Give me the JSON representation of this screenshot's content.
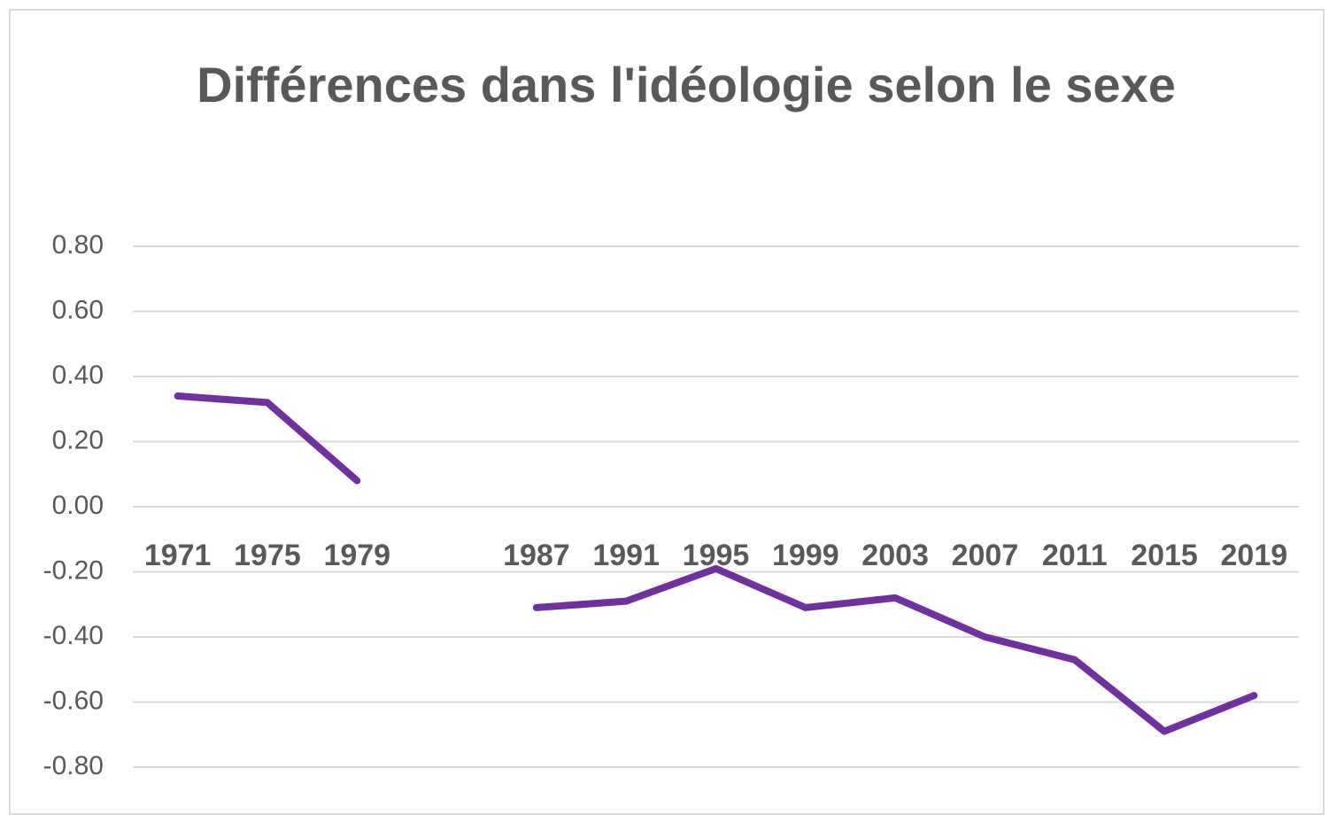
{
  "chart_data": {
    "type": "line",
    "title": "Différences dans l'idéologie selon le sexe",
    "categories": [
      "1971",
      "1975",
      "1979",
      null,
      "1987",
      "1991",
      "1995",
      "1999",
      "2003",
      "2007",
      "2011",
      "2015",
      "2019"
    ],
    "series": [
      {
        "color": "#7030a0",
        "values": [
          0.34,
          0.32,
          0.08,
          null,
          -0.31,
          -0.29,
          -0.19,
          -0.31,
          -0.28,
          -0.4,
          -0.47,
          -0.69,
          -0.58
        ]
      }
    ],
    "ylim": [
      -0.8,
      0.8
    ],
    "yticks": [
      {
        "value": 0.8,
        "label": "0.80"
      },
      {
        "value": 0.6,
        "label": "0.60"
      },
      {
        "value": 0.4,
        "label": "0.40"
      },
      {
        "value": 0.2,
        "label": "0.20"
      },
      {
        "value": 0,
        "label": "0.00"
      },
      {
        "value": -0.2,
        "label": "-0.20"
      },
      {
        "value": -0.4,
        "label": "-0.40"
      },
      {
        "value": -0.6,
        "label": "-0.60"
      },
      {
        "value": -0.8,
        "label": "-0.80"
      }
    ],
    "grid": true
  }
}
